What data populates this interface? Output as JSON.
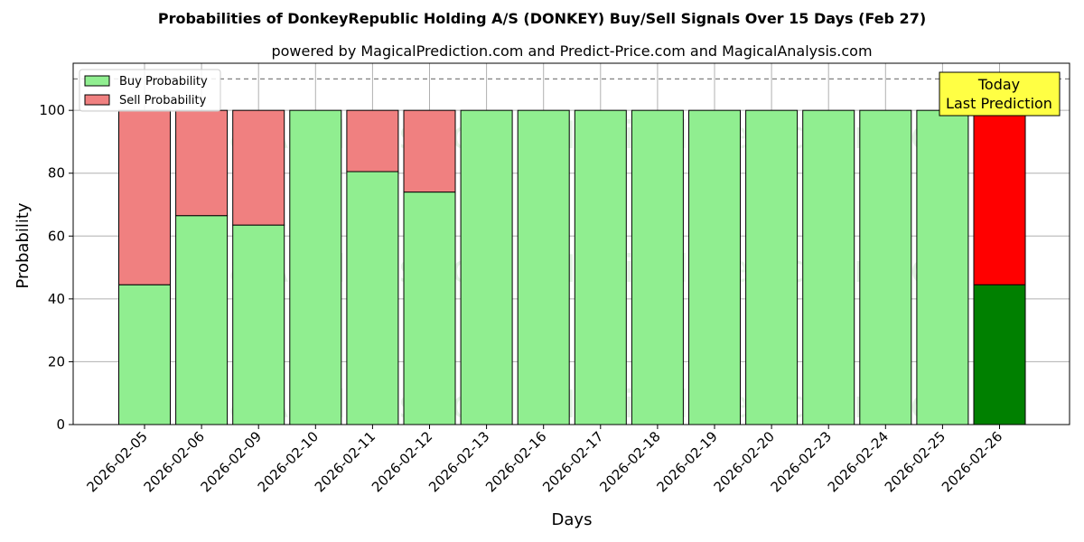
{
  "chart_data": {
    "type": "bar",
    "stacked": true,
    "title": "Probabilities of DonkeyRepublic Holding A/S (DONKEY) Buy/Sell Signals Over 15 Days (Feb 27)",
    "subtitle": "powered by MagicalPrediction.com and Predict-Price.com and MagicalAnalysis.com",
    "xlabel": "Days",
    "ylabel": "Probability",
    "ylim": [
      0,
      115
    ],
    "yticks": [
      0,
      20,
      40,
      60,
      80,
      100
    ],
    "reference_line": 110,
    "grid": true,
    "legend_position": "top-left",
    "categories": [
      "2026-02-05",
      "2026-02-06",
      "2026-02-09",
      "2026-02-10",
      "2026-02-11",
      "2026-02-12",
      "2026-02-13",
      "2026-02-16",
      "2026-02-17",
      "2026-02-18",
      "2026-02-19",
      "2026-02-20",
      "2026-02-23",
      "2026-02-24",
      "2026-02-25",
      "2026-02-26"
    ],
    "series": [
      {
        "name": "Buy Probability",
        "color": "#90ee90",
        "highlight_color": "#008000",
        "values": [
          44.5,
          66.5,
          63.5,
          100,
          80.5,
          74,
          100,
          100,
          100,
          100,
          100,
          100,
          100,
          100,
          100,
          44.5
        ]
      },
      {
        "name": "Sell Probability",
        "color": "#f08080",
        "highlight_color": "#ff0000",
        "values": [
          55.5,
          33.5,
          36.5,
          0,
          19.5,
          26,
          0,
          0,
          0,
          0,
          0,
          0,
          0,
          0,
          0,
          55.5
        ]
      }
    ],
    "highlight_index": 15,
    "annotation": {
      "lines": [
        "Today",
        "Last Prediction"
      ],
      "background": "#ffff44"
    },
    "watermarks": [
      "MagicalAnalysis.com",
      "MagicalPrediction.com"
    ]
  }
}
